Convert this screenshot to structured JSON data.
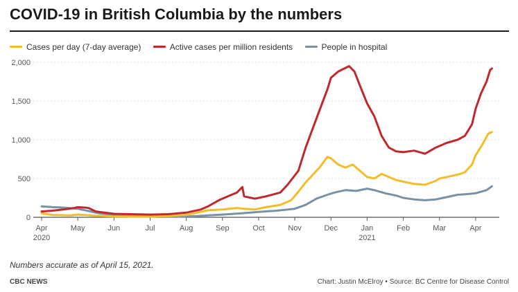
{
  "title": "COVID-19 in British Columbia by the numbers",
  "legend": [
    {
      "label": "Cases per day (7-day average)",
      "color": "#f2bd28"
    },
    {
      "label": "Active cases per million residents",
      "color": "#c0282d"
    },
    {
      "label": "People in hospital",
      "color": "#7891a5"
    }
  ],
  "note": "Numbers accurate as of April 15, 2021.",
  "footer": {
    "left": "CBC NEWS",
    "right": "Chart: Justin McElroy • Source: BC Centre for Disease Control"
  },
  "chart_data": {
    "type": "line",
    "x_unit": "month index (0 = April 1, 2020)",
    "ylim": [
      0,
      2000
    ],
    "yticks": [
      0,
      500,
      1000,
      1500,
      2000
    ],
    "ytick_labels": [
      "0",
      "500",
      "1,000",
      "1,500",
      "2,000"
    ],
    "xlim": [
      0,
      12.5
    ],
    "xticks": [
      {
        "x": 0,
        "label": "Apr",
        "sublabel": "2020"
      },
      {
        "x": 1,
        "label": "May"
      },
      {
        "x": 2,
        "label": "Jun"
      },
      {
        "x": 3,
        "label": "Jul"
      },
      {
        "x": 4,
        "label": "Aug"
      },
      {
        "x": 5,
        "label": "Sep"
      },
      {
        "x": 6,
        "label": "Oct"
      },
      {
        "x": 7,
        "label": "Nov"
      },
      {
        "x": 8,
        "label": "Dec"
      },
      {
        "x": 9,
        "label": "Jan",
        "sublabel": "2021"
      },
      {
        "x": 10,
        "label": "Feb"
      },
      {
        "x": 11,
        "label": "Mar"
      },
      {
        "x": 12,
        "label": "Apr"
      }
    ],
    "series": [
      {
        "name": "Active cases per million residents",
        "color": "#c0282d",
        "points": [
          [
            0,
            75
          ],
          [
            0.3,
            85
          ],
          [
            0.6,
            100
          ],
          [
            0.9,
            120
          ],
          [
            1.0,
            130
          ],
          [
            1.2,
            125
          ],
          [
            1.3,
            120
          ],
          [
            1.5,
            75
          ],
          [
            2.0,
            45
          ],
          [
            3.0,
            35
          ],
          [
            3.5,
            40
          ],
          [
            4.0,
            60
          ],
          [
            4.4,
            100
          ],
          [
            4.6,
            140
          ],
          [
            4.9,
            220
          ],
          [
            5.2,
            280
          ],
          [
            5.4,
            320
          ],
          [
            5.55,
            390
          ],
          [
            5.6,
            270
          ],
          [
            5.9,
            240
          ],
          [
            6.2,
            270
          ],
          [
            6.6,
            320
          ],
          [
            6.8,
            420
          ],
          [
            7.1,
            600
          ],
          [
            7.3,
            900
          ],
          [
            7.5,
            1150
          ],
          [
            7.7,
            1400
          ],
          [
            7.9,
            1650
          ],
          [
            8.0,
            1800
          ],
          [
            8.2,
            1880
          ],
          [
            8.5,
            1950
          ],
          [
            8.65,
            1880
          ],
          [
            8.8,
            1700
          ],
          [
            9.0,
            1470
          ],
          [
            9.2,
            1300
          ],
          [
            9.4,
            1050
          ],
          [
            9.6,
            900
          ],
          [
            9.8,
            850
          ],
          [
            10.0,
            840
          ],
          [
            10.3,
            860
          ],
          [
            10.6,
            820
          ],
          [
            10.9,
            900
          ],
          [
            11.0,
            920
          ],
          [
            11.2,
            960
          ],
          [
            11.5,
            1000
          ],
          [
            11.7,
            1050
          ],
          [
            11.9,
            1200
          ],
          [
            12.0,
            1400
          ],
          [
            12.15,
            1600
          ],
          [
            12.3,
            1750
          ],
          [
            12.4,
            1900
          ],
          [
            12.45,
            1920
          ]
        ]
      },
      {
        "name": "Cases per day (7-day average)",
        "color": "#f2bd28",
        "points": [
          [
            0,
            50
          ],
          [
            0.3,
            30
          ],
          [
            0.8,
            25
          ],
          [
            1.0,
            35
          ],
          [
            1.5,
            20
          ],
          [
            2.0,
            10
          ],
          [
            3.0,
            8
          ],
          [
            3.5,
            15
          ],
          [
            4.0,
            30
          ],
          [
            4.3,
            60
          ],
          [
            4.6,
            90
          ],
          [
            5.0,
            100
          ],
          [
            5.4,
            120
          ],
          [
            5.6,
            110
          ],
          [
            5.9,
            100
          ],
          [
            6.2,
            130
          ],
          [
            6.6,
            160
          ],
          [
            6.9,
            220
          ],
          [
            7.1,
            330
          ],
          [
            7.3,
            450
          ],
          [
            7.5,
            550
          ],
          [
            7.7,
            650
          ],
          [
            7.9,
            780
          ],
          [
            8.0,
            760
          ],
          [
            8.2,
            680
          ],
          [
            8.4,
            640
          ],
          [
            8.6,
            680
          ],
          [
            8.8,
            600
          ],
          [
            9.0,
            520
          ],
          [
            9.2,
            500
          ],
          [
            9.4,
            560
          ],
          [
            9.6,
            520
          ],
          [
            9.8,
            480
          ],
          [
            10.0,
            460
          ],
          [
            10.3,
            430
          ],
          [
            10.6,
            420
          ],
          [
            10.9,
            470
          ],
          [
            11.0,
            500
          ],
          [
            11.2,
            520
          ],
          [
            11.5,
            550
          ],
          [
            11.7,
            580
          ],
          [
            11.9,
            680
          ],
          [
            12.0,
            800
          ],
          [
            12.2,
            950
          ],
          [
            12.35,
            1080
          ],
          [
            12.45,
            1100
          ]
        ]
      },
      {
        "name": "People in hospital",
        "color": "#7891a5",
        "points": [
          [
            0,
            140
          ],
          [
            0.3,
            130
          ],
          [
            0.6,
            125
          ],
          [
            1.0,
            110
          ],
          [
            1.3,
            80
          ],
          [
            1.6,
            50
          ],
          [
            2.0,
            30
          ],
          [
            2.5,
            20
          ],
          [
            3.0,
            15
          ],
          [
            3.5,
            10
          ],
          [
            4.0,
            10
          ],
          [
            4.3,
            15
          ],
          [
            4.6,
            25
          ],
          [
            5.0,
            35
          ],
          [
            5.5,
            50
          ],
          [
            6.0,
            70
          ],
          [
            6.5,
            85
          ],
          [
            7.0,
            110
          ],
          [
            7.3,
            160
          ],
          [
            7.6,
            240
          ],
          [
            7.9,
            290
          ],
          [
            8.1,
            320
          ],
          [
            8.4,
            350
          ],
          [
            8.7,
            340
          ],
          [
            9.0,
            370
          ],
          [
            9.2,
            350
          ],
          [
            9.5,
            310
          ],
          [
            9.8,
            280
          ],
          [
            10.0,
            250
          ],
          [
            10.3,
            230
          ],
          [
            10.6,
            220
          ],
          [
            10.9,
            230
          ],
          [
            11.2,
            260
          ],
          [
            11.5,
            290
          ],
          [
            11.8,
            300
          ],
          [
            12.0,
            310
          ],
          [
            12.3,
            350
          ],
          [
            12.45,
            400
          ]
        ]
      }
    ]
  }
}
